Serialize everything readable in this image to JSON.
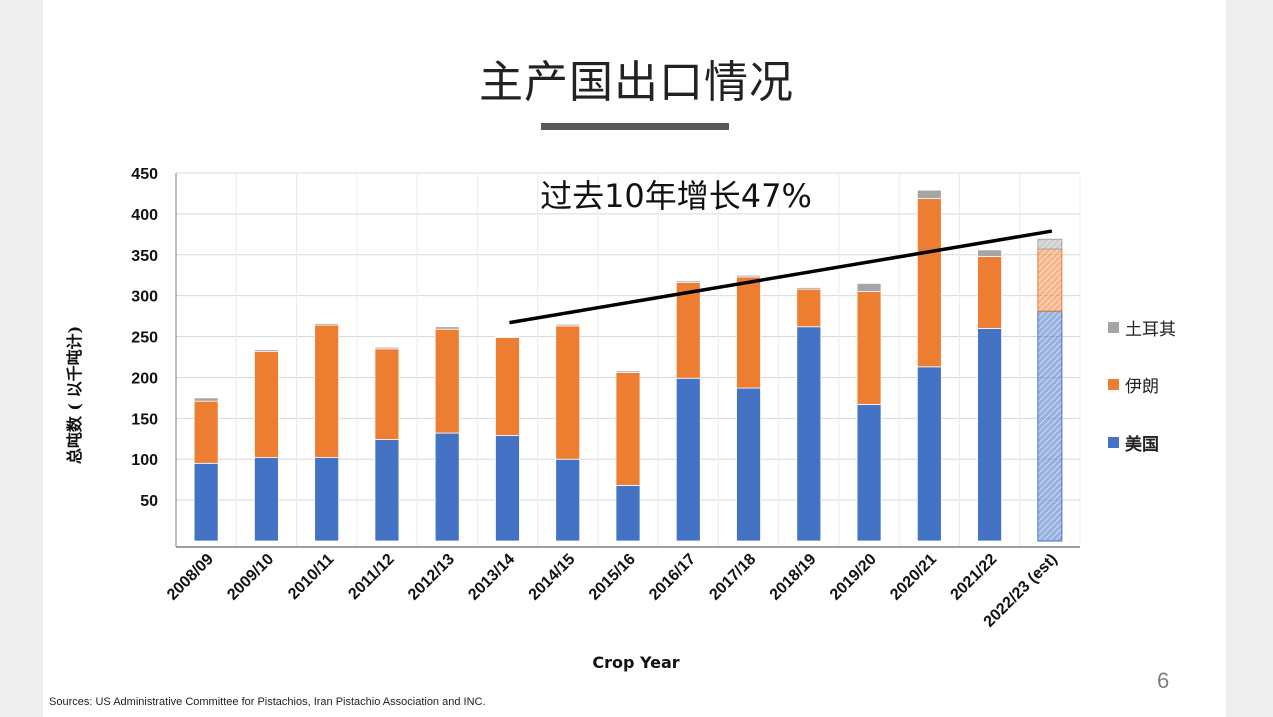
{
  "slide": {
    "title": "主产国出口情况",
    "sources": "Sources:  US Administrative Committee for Pistachios,  Iran Pistachio Association and INC.",
    "page_number": "6"
  },
  "colors": {
    "usa": "#4472c4",
    "iran": "#ed7d31",
    "turkey": "#a5a5a5",
    "trend": "#000000",
    "grid": "#d9d9d9"
  },
  "chart_data": {
    "type": "bar",
    "stacked": true,
    "annotation": "过去10年增长47%",
    "xlabel": "Crop Year",
    "ylabel": "总吨数 ( 以千吨计)",
    "ylim": [
      0,
      450
    ],
    "yticks": [
      50,
      100,
      150,
      200,
      250,
      300,
      350,
      400,
      450
    ],
    "grid": true,
    "legend_position": "right",
    "categories": [
      "2008/09",
      "2009/10",
      "2010/11",
      "2011/12",
      "2012/13",
      "2013/14",
      "2014/15",
      "2015/16",
      "2016/17",
      "2017/18",
      "2018/19",
      "2019/20",
      "2020/21",
      "2021/22",
      "2022/23 (est)"
    ],
    "series": [
      {
        "name": "美国",
        "color": "#4472c4",
        "values": [
          95,
          102,
          102,
          124,
          132,
          129,
          100,
          68,
          199,
          187,
          262,
          167,
          213,
          260,
          281
        ]
      },
      {
        "name": "伊朗",
        "color": "#ed7d31",
        "values": [
          76,
          130,
          162,
          111,
          127,
          120,
          163,
          138,
          117,
          136,
          46,
          138,
          206,
          88,
          76
        ]
      },
      {
        "name": "土耳其",
        "color": "#a5a5a5",
        "values": [
          4,
          2,
          2,
          2,
          3,
          1,
          2,
          2,
          2,
          2,
          2,
          10,
          10,
          8,
          12
        ]
      }
    ],
    "estimated_categories": [
      "2022/23 (est)"
    ],
    "trend_line": {
      "from_category": "2013/14",
      "from_value": 267,
      "to_category": "2022/23 (est)",
      "to_value": 379
    }
  }
}
